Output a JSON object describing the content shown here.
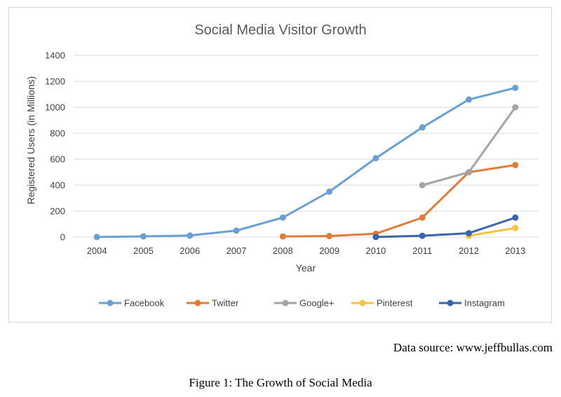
{
  "chart_data": {
    "type": "line",
    "title": "Social Media Visitor Growth",
    "xlabel": "Year",
    "ylabel": "Registered Users (in Millions)",
    "ylim": [
      0,
      1400
    ],
    "yticks": [
      0,
      200,
      400,
      600,
      800,
      1000,
      1200,
      1400
    ],
    "categories": [
      "2004",
      "2005",
      "2006",
      "2007",
      "2008",
      "2009",
      "2010",
      "2011",
      "2012",
      "2013"
    ],
    "grid": true,
    "legend_position": "bottom",
    "series": [
      {
        "name": "Facebook",
        "color": "#6a9fd4",
        "values": [
          1,
          5.5,
          12,
          50,
          150,
          350,
          608,
          845,
          1060,
          1150
        ]
      },
      {
        "name": "Twitter",
        "color": "#e07b39",
        "values": [
          null,
          null,
          null,
          null,
          5,
          8,
          26,
          150,
          500,
          555
        ]
      },
      {
        "name": "Google+",
        "color": "#a5a5a5",
        "values": [
          null,
          null,
          null,
          null,
          null,
          null,
          null,
          400,
          500,
          1000
        ]
      },
      {
        "name": "Pinterest",
        "color": "#f5c242",
        "values": [
          null,
          null,
          null,
          null,
          null,
          null,
          null,
          null,
          10,
          70
        ]
      },
      {
        "name": "Instagram",
        "color": "#3a64ad",
        "values": [
          null,
          null,
          null,
          null,
          null,
          null,
          1,
          10,
          30,
          150
        ]
      }
    ]
  },
  "source_text": "Data source: www.jeffbullas.com",
  "caption": "Figure 1: The Growth of Social Media"
}
